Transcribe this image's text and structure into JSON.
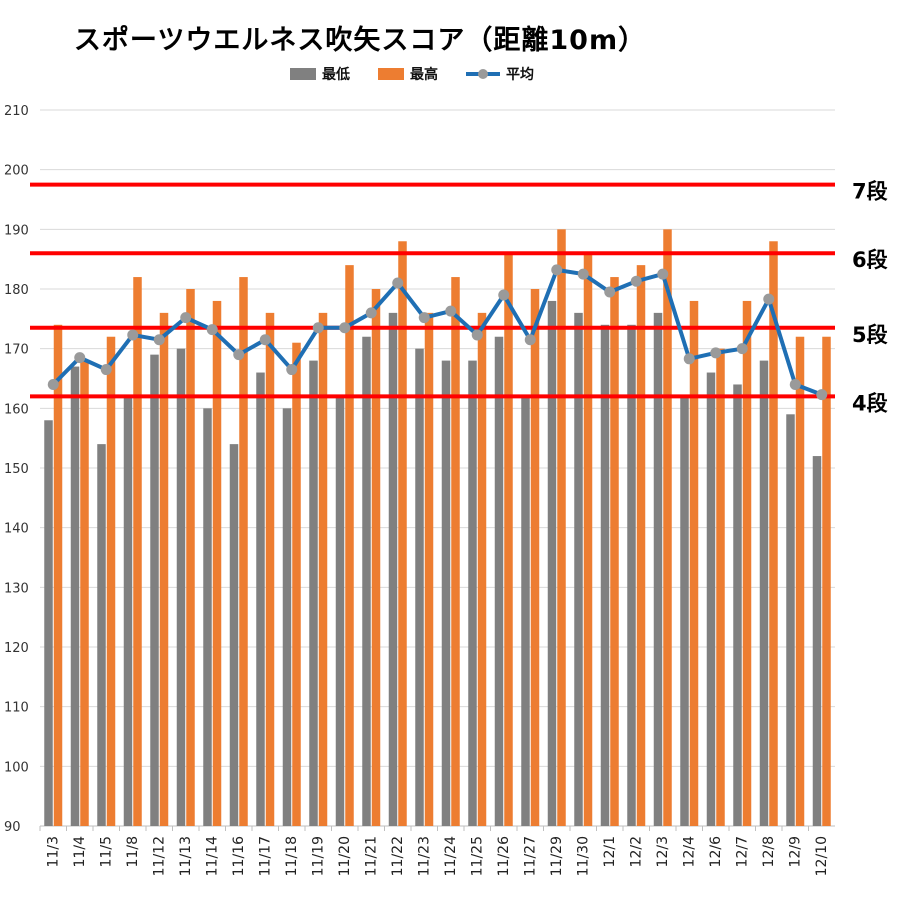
{
  "chart_data": {
    "type": "bar",
    "title": "スポーツウエルネス吹矢スコア（距離10m）",
    "categories": [
      "11/3",
      "11/4",
      "11/5",
      "11/8",
      "11/12",
      "11/13",
      "11/14",
      "11/16",
      "11/17",
      "11/18",
      "11/19",
      "11/20",
      "11/21",
      "11/22",
      "11/23",
      "11/24",
      "11/25",
      "11/26",
      "11/27",
      "11/29",
      "11/30",
      "12/1",
      "12/2",
      "12/3",
      "12/4",
      "12/6",
      "12/7",
      "12/8",
      "12/9",
      "12/10"
    ],
    "series": [
      {
        "name": "最低",
        "type": "bar",
        "color": "#808080",
        "values": [
          158,
          167,
          154,
          162,
          169,
          170,
          160,
          154,
          166,
          160,
          168,
          162,
          172,
          176,
          170,
          168,
          168,
          172,
          162,
          178,
          176,
          174,
          174,
          176,
          162,
          166,
          164,
          168,
          159,
          152
        ]
      },
      {
        "name": "最高",
        "type": "bar",
        "color": "#ed7d31",
        "values": [
          174,
          168,
          172,
          182,
          176,
          180,
          178,
          182,
          176,
          171,
          176,
          184,
          180,
          188,
          176,
          182,
          176,
          186,
          180,
          190,
          186,
          182,
          184,
          190,
          178,
          170,
          178,
          188,
          172,
          172
        ]
      },
      {
        "name": "平均",
        "type": "line",
        "color": "#1f6fb4",
        "marker_color": "#9a9a9a",
        "values": [
          164,
          168.5,
          166.5,
          172.3,
          171.5,
          175.2,
          173.2,
          169,
          171.5,
          166.5,
          173.5,
          173.5,
          176,
          181,
          175.2,
          176.3,
          172.3,
          179,
          171.5,
          183.2,
          182.5,
          179.5,
          181.3,
          182.5,
          168.3,
          169.3,
          170,
          178.3,
          164,
          162.3
        ]
      }
    ],
    "reference_lines": [
      {
        "value": 197.5,
        "label": "7段",
        "color": "#ff0000"
      },
      {
        "value": 186,
        "label": "6段",
        "color": "#ff0000"
      },
      {
        "value": 173.5,
        "label": "5段",
        "color": "#ff0000"
      },
      {
        "value": 162,
        "label": "4段",
        "color": "#ff0000"
      }
    ],
    "ylim": [
      90,
      210
    ],
    "yticks": [
      90,
      100,
      110,
      120,
      130,
      140,
      150,
      160,
      170,
      180,
      190,
      200,
      210
    ],
    "grid": true,
    "legend_position": "top"
  }
}
